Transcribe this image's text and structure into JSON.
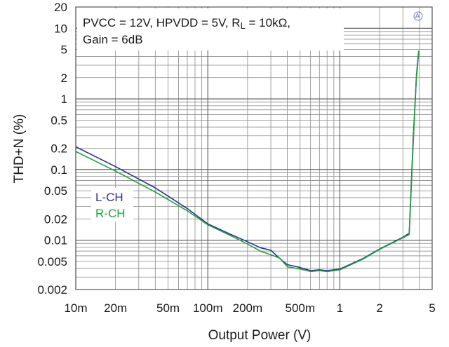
{
  "chart_data": {
    "type": "line",
    "xlabel": "Output Power (V)",
    "ylabel": "THD+N (%)",
    "x_scale": "log",
    "y_scale": "log",
    "xlim": [
      0.01,
      5
    ],
    "ylim": [
      0.002,
      20
    ],
    "grid": true,
    "x_ticks": [
      {
        "value": 0.01,
        "label": "10m"
      },
      {
        "value": 0.02,
        "label": "20m"
      },
      {
        "value": 0.05,
        "label": "50m"
      },
      {
        "value": 0.1,
        "label": "100m"
      },
      {
        "value": 0.2,
        "label": "200m"
      },
      {
        "value": 0.5,
        "label": "500m"
      },
      {
        "value": 1,
        "label": "1"
      },
      {
        "value": 2,
        "label": "2"
      },
      {
        "value": 5,
        "label": "5"
      }
    ],
    "y_ticks": [
      {
        "value": 0.002,
        "label": "0.002"
      },
      {
        "value": 0.005,
        "label": "0.005"
      },
      {
        "value": 0.01,
        "label": "0.01"
      },
      {
        "value": 0.02,
        "label": "0.02"
      },
      {
        "value": 0.05,
        "label": "0.05"
      },
      {
        "value": 0.1,
        "label": "0.1"
      },
      {
        "value": 0.2,
        "label": "0.2"
      },
      {
        "value": 0.5,
        "label": "0.5"
      },
      {
        "value": 1,
        "label": "1"
      },
      {
        "value": 2,
        "label": "2"
      },
      {
        "value": 5,
        "label": "5"
      },
      {
        "value": 10,
        "label": "10"
      },
      {
        "value": 20,
        "label": "20"
      }
    ],
    "annotation_lines": [
      "PVCC = 12V, HPVDD = 5V, R",
      "L",
      " = 10kΩ,",
      "Gain = 6dB"
    ],
    "legend_placement": "left-middle",
    "series": [
      {
        "name": "L-CH",
        "color": "#2e3192",
        "points": [
          [
            0.01,
            0.21
          ],
          [
            0.02,
            0.11
          ],
          [
            0.04,
            0.055
          ],
          [
            0.07,
            0.028
          ],
          [
            0.1,
            0.017
          ],
          [
            0.15,
            0.012
          ],
          [
            0.2,
            0.0095
          ],
          [
            0.25,
            0.0078
          ],
          [
            0.3,
            0.0072
          ],
          [
            0.35,
            0.0055
          ],
          [
            0.4,
            0.0045
          ],
          [
            0.5,
            0.0041
          ],
          [
            0.6,
            0.0037
          ],
          [
            0.7,
            0.0038
          ],
          [
            0.8,
            0.0037
          ],
          [
            0.9,
            0.0038
          ],
          [
            1.0,
            0.0039
          ],
          [
            1.5,
            0.0055
          ],
          [
            2.0,
            0.0075
          ],
          [
            3.0,
            0.011
          ],
          [
            3.35,
            0.0125
          ],
          [
            3.6,
            0.3
          ],
          [
            3.8,
            2.0
          ],
          [
            3.95,
            4.5
          ]
        ]
      },
      {
        "name": "R-CH",
        "color": "#1fa03c",
        "points": [
          [
            0.01,
            0.18
          ],
          [
            0.02,
            0.095
          ],
          [
            0.04,
            0.048
          ],
          [
            0.07,
            0.026
          ],
          [
            0.1,
            0.0165
          ],
          [
            0.15,
            0.0115
          ],
          [
            0.2,
            0.0088
          ],
          [
            0.25,
            0.007
          ],
          [
            0.3,
            0.0062
          ],
          [
            0.35,
            0.0056
          ],
          [
            0.4,
            0.0042
          ],
          [
            0.5,
            0.0039
          ],
          [
            0.6,
            0.0036
          ],
          [
            0.7,
            0.0037
          ],
          [
            0.8,
            0.0036
          ],
          [
            0.9,
            0.0037
          ],
          [
            1.0,
            0.0038
          ],
          [
            1.5,
            0.0054
          ],
          [
            2.0,
            0.0074
          ],
          [
            3.0,
            0.0108
          ],
          [
            3.35,
            0.012
          ],
          [
            3.6,
            0.25
          ],
          [
            3.8,
            2.2
          ],
          [
            3.95,
            4.8
          ]
        ]
      }
    ]
  }
}
